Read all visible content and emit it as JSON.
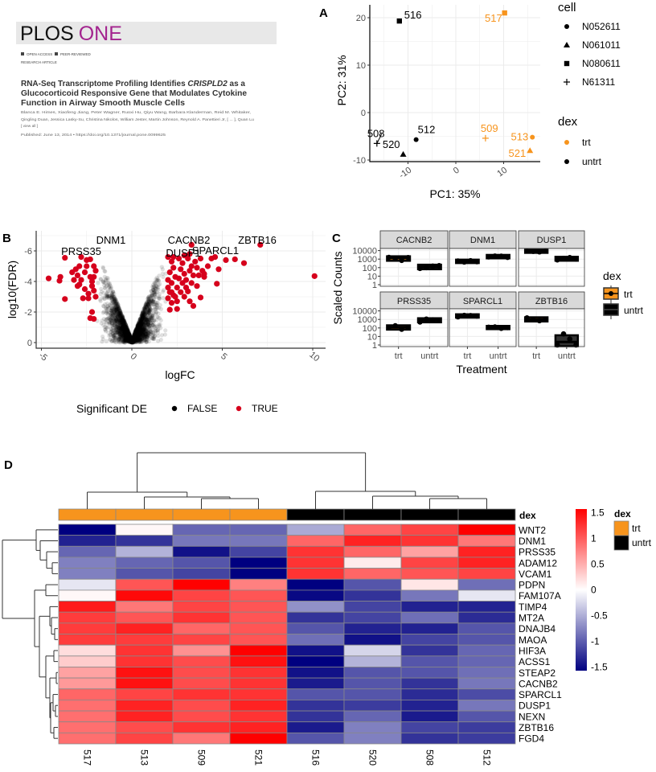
{
  "article": {
    "brand_left": "PLOS",
    "brand_right": "ONE",
    "badge_open": "OPEN ACCESS",
    "badge_peer": "PEER-REVIEWED",
    "article_type": "RESEARCH ARTICLE",
    "title_pre": "RNA-Seq Transcriptome Profiling Identifies ",
    "title_gene": "CRISPLD2",
    "title_post": " as a",
    "title_line2": "Glucocorticoid Responsive Gene that Modulates Cytokine",
    "title_line3": "Function in Airway Smooth Muscle Cells",
    "authors_line1": "Blanca E. Himes, Xiaofeng Jiang, Peter Wagner, Ruoxi Hu, Qiyu Wang, Barbara Klanderman, Reid M. Whitaker,",
    "authors_line2": "Qingling Duan, Jessica Lasky-Su, Christina Nikolos, William Jester, Martin Johnson, Reynold A. Panettieri Jr, [ ... ], Quan Lu",
    "view_all": "[ view all ]",
    "published": "Published: June 13, 2014 • https://doi.org/10.1371/journal.pone.0099625",
    "colors": {
      "brand_purple": "#a3238e",
      "header_bg": "#e8e8e8"
    }
  },
  "panel_labels": {
    "a": "A",
    "b": "B",
    "c": "C",
    "d": "D"
  },
  "colors": {
    "trt": "#f7941d",
    "untrt": "#000000",
    "significant": "#d6001c",
    "heat_low": "#000080",
    "heat_mid": "#ffffff",
    "heat_high": "#ff0000"
  },
  "chart_data": [
    {
      "type": "scatter",
      "xlabel": "PC1: 35%",
      "ylabel": "PC2: 31%",
      "xlim": [
        -17,
        18
      ],
      "ylim": [
        -10,
        22
      ],
      "xticks": [
        "-10",
        "0",
        "10"
      ],
      "xtick_values": [
        -10,
        0,
        10
      ],
      "yticks": [
        "-10",
        "0",
        "10",
        "20"
      ],
      "ytick_values": [
        -10,
        0,
        10,
        20
      ],
      "grid": true,
      "legend_position": "right",
      "legend_cell_title": "cell",
      "legend_cell": [
        {
          "label": "N052611",
          "shape": "circle"
        },
        {
          "label": "N061011",
          "shape": "triangle"
        },
        {
          "label": "N080611",
          "shape": "square"
        },
        {
          "label": "N61311",
          "shape": "plus"
        }
      ],
      "legend_dex_title": "dex",
      "legend_dex": [
        "trt",
        "untrt"
      ],
      "points": [
        {
          "label": "516",
          "x": -11.8,
          "y": 19.3,
          "cell": "N080611",
          "dex": "untrt"
        },
        {
          "label": "517",
          "x": 10.2,
          "y": 21.0,
          "cell": "N080611",
          "dex": "trt"
        },
        {
          "label": "508",
          "x": -16.5,
          "y": -6.5,
          "cell": "N61311",
          "dex": "untrt"
        },
        {
          "label": "520",
          "x": -11.0,
          "y": -8.8,
          "cell": "N061011",
          "dex": "untrt"
        },
        {
          "label": "512",
          "x": -8.3,
          "y": -5.7,
          "cell": "N052611",
          "dex": "untrt"
        },
        {
          "label": "509",
          "x": 6.2,
          "y": -5.4,
          "cell": "N61311",
          "dex": "trt"
        },
        {
          "label": "513",
          "x": 16.0,
          "y": -5.2,
          "cell": "N052611",
          "dex": "trt"
        },
        {
          "label": "521",
          "x": 15.5,
          "y": -8.0,
          "cell": "N061011",
          "dex": "trt"
        }
      ]
    },
    {
      "type": "scatter",
      "xlabel": "logFC",
      "ylabel": "log10(FDR)",
      "xlim": [
        -5.2,
        10.8
      ],
      "ylim": [
        0.4,
        -7.3
      ],
      "y_reversed": true,
      "xticks": [
        "-5",
        "0",
        "5",
        "10"
      ],
      "xtick_values": [
        -5,
        0,
        5,
        10
      ],
      "yticks": [
        "-6",
        "-4",
        "-2",
        "0"
      ],
      "ytick_values": [
        -6,
        -4,
        -2,
        0
      ],
      "grid": true,
      "legend_position": "bottom",
      "legend_title": "Significant DE",
      "legend": [
        {
          "label": "FALSE",
          "color": "#000000"
        },
        {
          "label": "TRUE",
          "color": "#d6001c"
        }
      ],
      "labeled_genes": [
        {
          "gene": "DNM1",
          "x": -1.8,
          "y": -6.5
        },
        {
          "gene": "PRSS35",
          "x": -2.8,
          "y": -5.9
        },
        {
          "gene": "CACNB2",
          "x": 3.3,
          "y": -6.4
        },
        {
          "gene": "DUSP1",
          "x": 2.5,
          "y": -5.8
        },
        {
          "gene": "SPARCL1",
          "x": 3.9,
          "y": -5.9
        },
        {
          "gene": "ZBTB16",
          "x": 7.1,
          "y": -6.4
        }
      ],
      "significant_points": [
        [
          2.0,
          -5.6
        ],
        [
          2.2,
          -5.3
        ],
        [
          2.3,
          -4.9
        ],
        [
          2.1,
          -4.6
        ],
        [
          2.4,
          -4.3
        ],
        [
          2.0,
          -4.1
        ],
        [
          2.2,
          -3.9
        ],
        [
          2.5,
          -3.6
        ],
        [
          2.1,
          -3.3
        ],
        [
          2.3,
          -3.1
        ],
        [
          2.0,
          -2.9
        ],
        [
          2.6,
          -5.5
        ],
        [
          2.8,
          -5.2
        ],
        [
          2.7,
          -4.8
        ],
        [
          2.9,
          -4.5
        ],
        [
          2.6,
          -4.2
        ],
        [
          2.8,
          -3.9
        ],
        [
          3.0,
          -3.6
        ],
        [
          2.7,
          -3.3
        ],
        [
          2.4,
          -3.0
        ],
        [
          3.1,
          -5.5
        ],
        [
          3.3,
          -5.0
        ],
        [
          3.2,
          -4.7
        ],
        [
          3.4,
          -4.4
        ],
        [
          3.0,
          -4.1
        ],
        [
          3.5,
          -5.3
        ],
        [
          3.6,
          -4.9
        ],
        [
          3.7,
          -4.4
        ],
        [
          3.9,
          -4.7
        ],
        [
          4.0,
          -4.3
        ],
        [
          3.8,
          -5.5
        ],
        [
          3.3,
          -3.9
        ],
        [
          2.2,
          -2.6
        ],
        [
          2.5,
          -2.2
        ],
        [
          2.3,
          -5.6
        ],
        [
          3.3,
          -6.4
        ],
        [
          2.9,
          -3.0
        ],
        [
          2.5,
          -2.7
        ],
        [
          2.1,
          -2.15
        ],
        [
          3.1,
          -3.35
        ],
        [
          3.2,
          -2.7
        ],
        [
          3.4,
          -2.4
        ],
        [
          3.6,
          -3.7
        ],
        [
          3.8,
          -2.95
        ],
        [
          4.0,
          -4.5
        ],
        [
          4.4,
          -5.5
        ],
        [
          4.6,
          -5.6
        ],
        [
          4.7,
          -3.85
        ],
        [
          4.8,
          -4.8
        ],
        [
          5.2,
          -5.4
        ],
        [
          5.7,
          -5.45
        ],
        [
          6.2,
          -5.2
        ],
        [
          7.1,
          -6.4
        ],
        [
          10.1,
          -4.35
        ],
        [
          3.2,
          -5.8
        ],
        [
          2.9,
          -5.7
        ],
        [
          4.2,
          -5.0
        ],
        [
          2.0,
          -3.6
        ],
        [
          2.2,
          -3.3
        ],
        [
          -4.6,
          -4.2
        ],
        [
          -4.0,
          -4.05
        ],
        [
          -3.95,
          -4.3
        ],
        [
          -3.7,
          -5.55
        ],
        [
          -3.7,
          -2.85
        ],
        [
          -3.1,
          -4.8
        ],
        [
          -3.0,
          -4.4
        ],
        [
          -2.8,
          -5.6
        ],
        [
          -2.5,
          -5.4
        ],
        [
          -2.3,
          -5.45
        ],
        [
          -2.2,
          -2.0
        ],
        [
          -2.3,
          -1.6
        ],
        [
          -2.1,
          -1.55
        ],
        [
          -2.7,
          -2.9
        ],
        [
          -3.2,
          -4.1
        ],
        [
          -2.9,
          -3.8
        ],
        [
          -2.6,
          -3.5
        ],
        [
          -2.4,
          -3.2
        ],
        [
          -2.2,
          -4.0
        ],
        [
          -2.0,
          -4.7
        ],
        [
          -2.1,
          -5.0
        ],
        [
          -2.3,
          -4.3
        ],
        [
          -2.6,
          -4.6
        ],
        [
          -2.8,
          -4.1
        ],
        [
          -3.0,
          -3.7
        ],
        [
          -2.4,
          -2.9
        ],
        [
          -2.1,
          -3.4
        ],
        [
          -2.9,
          -5.0
        ],
        [
          -2.5,
          -5.0
        ],
        [
          -2.1,
          -4.3
        ],
        [
          -2.0,
          -3.0
        ],
        [
          -3.3,
          -4.6
        ],
        [
          -2.2,
          -3.7
        ]
      ]
    },
    {
      "type": "box",
      "xlabel": "Treatment",
      "ylabel": "Scaled Counts",
      "y_scale": "log10",
      "ylim": [
        1,
        15000
      ],
      "yticks": [
        "1",
        "10",
        "100",
        "1000",
        "10000"
      ],
      "ytick_values": [
        1,
        10,
        100,
        1000,
        10000
      ],
      "categories": [
        "trt",
        "untrt"
      ],
      "legend_title": "dex",
      "legend": [
        "trt",
        "untrt"
      ],
      "facets": [
        {
          "gene": "CACNB2",
          "trt": [
            1600,
            1100,
            700,
            1500
          ],
          "untrt": [
            80,
            100,
            150,
            170
          ]
        },
        {
          "gene": "DNM1",
          "trt": [
            600,
            450,
            650,
            500
          ],
          "untrt": [
            1800,
            2300,
            2200,
            1600
          ]
        },
        {
          "gene": "DUSP1",
          "trt": [
            9000,
            8000,
            7000,
            9500
          ],
          "untrt": [
            800,
            1200,
            1500,
            1000
          ]
        },
        {
          "gene": "PRSS35",
          "trt": [
            120,
            180,
            70,
            110
          ],
          "untrt": [
            500,
            1100,
            900,
            800
          ]
        },
        {
          "gene": "SPARCL1",
          "trt": [
            2000,
            3000,
            2800,
            2500
          ],
          "untrt": [
            120,
            130,
            90,
            110
          ]
        },
        {
          "gene": "ZBTB16",
          "trt": [
            1500,
            900,
            700,
            1100
          ],
          "untrt": [
            1,
            20,
            5,
            1
          ]
        }
      ]
    },
    {
      "type": "heatmap",
      "annotation_title": "dex",
      "legend_title": "dex",
      "legend": [
        "trt",
        "untrt"
      ],
      "colorbar_ticks": [
        "1.5",
        "1",
        "0.5",
        "0",
        "-0.5",
        "-1",
        "-1.5"
      ],
      "colorbar_values": [
        1.5,
        1,
        0.5,
        0,
        -0.5,
        -1,
        -1.5
      ],
      "range": [
        -1.5,
        1.5
      ],
      "columns": [
        "517",
        "513",
        "509",
        "521",
        "516",
        "520",
        "508",
        "512"
      ],
      "column_dex": [
        "trt",
        "trt",
        "trt",
        "trt",
        "untrt",
        "untrt",
        "untrt",
        "untrt"
      ],
      "rows": [
        "WNT2",
        "DNM1",
        "PRSS35",
        "ADAM12",
        "VCAM1",
        "PDPN",
        "FAM107A",
        "TIMP4",
        "MT2A",
        "DNAJB4",
        "MAOA",
        "HIF3A",
        "ACSS1",
        "STEAP2",
        "CACNB2",
        "SPARCL1",
        "DUSP1",
        "NEXN",
        "ZBTB16",
        "FGD4"
      ],
      "values": [
        [
          -1.5,
          0.05,
          -0.9,
          -0.9,
          -0.5,
          0.9,
          1.1,
          1.5
        ],
        [
          -1.3,
          -1.2,
          -0.8,
          -0.8,
          0.9,
          1.3,
          1.2,
          0.8
        ],
        [
          -0.9,
          -0.45,
          -1.4,
          -1.1,
          1.2,
          0.9,
          0.55,
          1.3
        ],
        [
          -0.75,
          -0.9,
          -1.0,
          -1.5,
          1.2,
          0.12,
          1.1,
          1.3
        ],
        [
          -0.75,
          -1.0,
          -1.1,
          -1.5,
          1.2,
          0.9,
          1.0,
          1.1
        ],
        [
          -0.15,
          1.0,
          1.5,
          0.75,
          -1.5,
          -1.0,
          0.15,
          -0.85
        ],
        [
          0.04,
          1.45,
          1.1,
          1.0,
          -1.45,
          -1.2,
          -0.8,
          -0.15
        ],
        [
          1.35,
          0.8,
          1.1,
          1.0,
          -0.65,
          -1.1,
          -1.3,
          -1.3
        ],
        [
          1.15,
          1.0,
          1.2,
          1.0,
          -1.2,
          -1.1,
          -0.85,
          -1.25
        ],
        [
          1.15,
          1.3,
          0.9,
          1.0,
          -1.0,
          -1.3,
          -1.3,
          -1.0
        ],
        [
          1.15,
          1.15,
          1.1,
          1.0,
          -0.85,
          -1.4,
          -1.1,
          -1.0
        ],
        [
          0.2,
          1.2,
          0.65,
          1.5,
          -1.4,
          -0.25,
          -1.2,
          -0.9
        ],
        [
          0.3,
          1.2,
          1.05,
          1.4,
          -1.5,
          -0.45,
          -1.0,
          -0.9
        ],
        [
          0.55,
          1.4,
          1.05,
          1.2,
          -1.4,
          -1.0,
          -1.0,
          -0.85
        ],
        [
          0.6,
          1.4,
          1.05,
          1.2,
          -1.35,
          -1.0,
          -1.2,
          -0.8
        ],
        [
          0.9,
          1.1,
          1.2,
          1.2,
          -1.0,
          -1.0,
          -1.25,
          -1.05
        ],
        [
          0.85,
          1.3,
          1.05,
          1.3,
          -1.2,
          -1.15,
          -1.3,
          -0.8
        ],
        [
          0.85,
          1.3,
          1.05,
          1.2,
          -1.2,
          -0.9,
          -1.35,
          -1.0
        ],
        [
          0.85,
          1.05,
          1.2,
          1.3,
          -1.35,
          -0.75,
          -1.1,
          -1.15
        ],
        [
          0.85,
          1.1,
          0.8,
          1.5,
          -1.0,
          -0.75,
          -1.2,
          -1.15
        ]
      ]
    }
  ]
}
